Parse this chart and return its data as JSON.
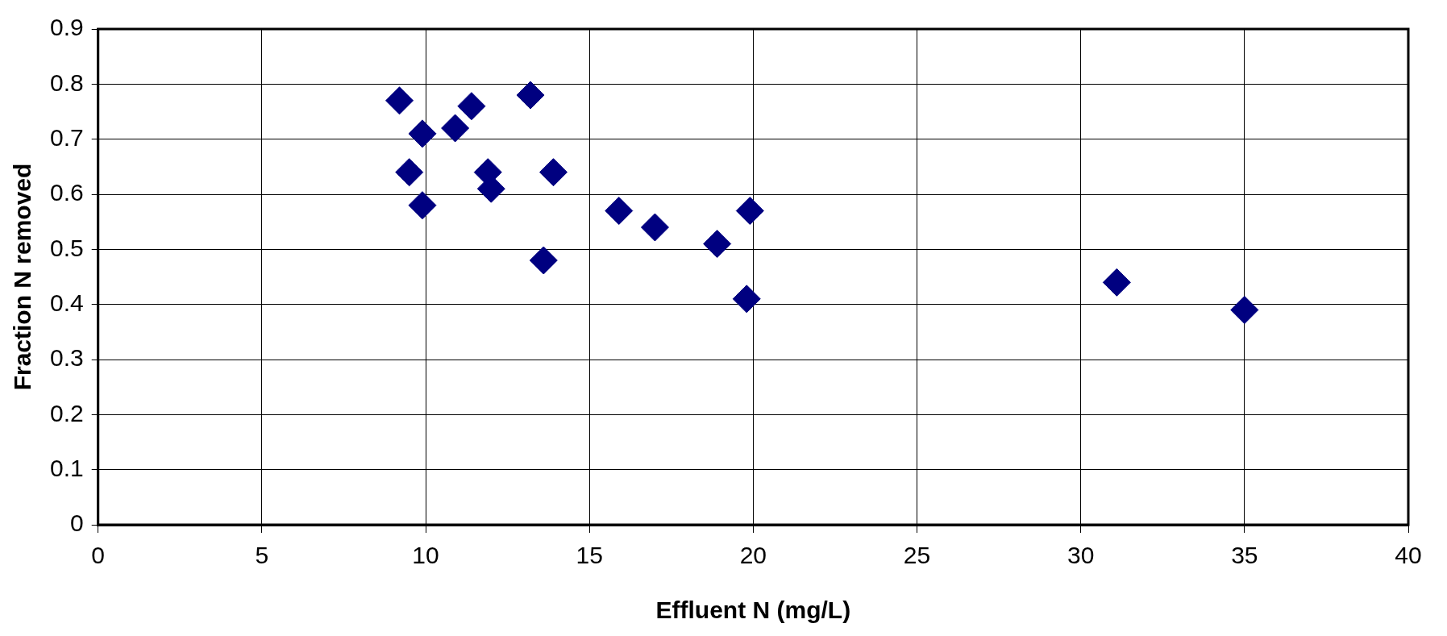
{
  "chart_data": {
    "type": "scatter",
    "xlabel": "Effluent N (mg/L)",
    "ylabel": "Fraction N removed",
    "x": [
      9.2,
      9.9,
      10.9,
      11.4,
      13.2,
      9.5,
      11.9,
      12.0,
      13.9,
      9.9,
      15.9,
      17.0,
      18.9,
      19.9,
      13.6,
      19.8,
      31.1,
      35.0
    ],
    "values": [
      0.77,
      0.71,
      0.72,
      0.76,
      0.78,
      0.64,
      0.64,
      0.61,
      0.64,
      0.58,
      0.57,
      0.54,
      0.51,
      0.57,
      0.48,
      0.41,
      0.44,
      0.39
    ],
    "color": "#000080",
    "marker": "diamond",
    "xlim": [
      0,
      40
    ],
    "xticks": [
      0,
      5,
      10,
      15,
      20,
      25,
      30,
      35,
      40
    ],
    "ylim": [
      0,
      0.9
    ],
    "yticks": [
      0,
      0.1,
      0.2,
      0.3,
      0.4,
      0.5,
      0.6,
      0.7,
      0.8,
      0.9
    ],
    "grid": true,
    "legend": false
  }
}
